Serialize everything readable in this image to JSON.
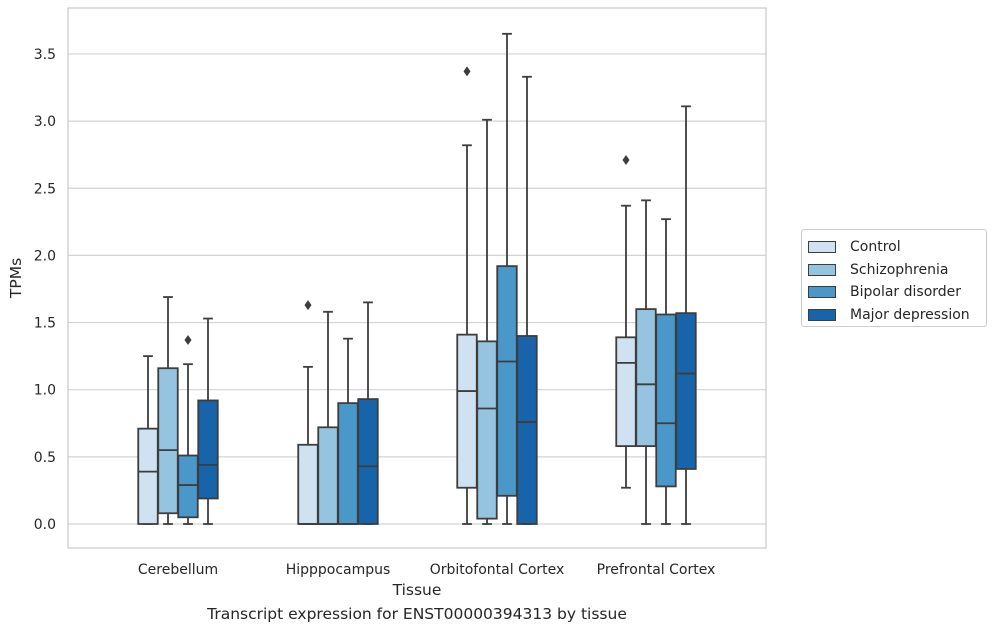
{
  "chart_data": {
    "type": "box",
    "caption": "Transcript expression for ENST00000394313 by tissue",
    "xlabel": "Tissue",
    "ylabel": "TPMs",
    "ylim": [
      -0.18,
      3.85
    ],
    "yticks": [
      "0.0",
      "0.5",
      "1.0",
      "1.5",
      "2.0",
      "2.5",
      "3.0",
      "3.5"
    ],
    "grid": "horizontal",
    "legend_position": "right",
    "categories": [
      "Cerebellum",
      "Hipppocampus",
      "Orbitofontal Cortex",
      "Prefrontal Cortex"
    ],
    "series": [
      {
        "name": "Control",
        "color": "#d0e1f2",
        "boxes": [
          {
            "whislo": 0.0,
            "q1": 0.0,
            "med": 0.39,
            "q3": 0.71,
            "whishi": 1.25,
            "fliers": []
          },
          {
            "whislo": 0.0,
            "q1": 0.0,
            "med": 0.0,
            "q3": 0.59,
            "whishi": 1.17,
            "fliers": [
              1.63
            ]
          },
          {
            "whislo": 0.0,
            "q1": 0.27,
            "med": 0.99,
            "q3": 1.41,
            "whishi": 2.82,
            "fliers": [
              3.37
            ]
          },
          {
            "whislo": 0.27,
            "q1": 0.58,
            "med": 1.2,
            "q3": 1.39,
            "whishi": 2.37,
            "fliers": [
              2.71
            ]
          }
        ]
      },
      {
        "name": "Schizophrenia",
        "color": "#94c4df",
        "boxes": [
          {
            "whislo": 0.0,
            "q1": 0.08,
            "med": 0.55,
            "q3": 1.16,
            "whishi": 1.69,
            "fliers": []
          },
          {
            "whislo": 0.0,
            "q1": 0.0,
            "med": 0.0,
            "q3": 0.72,
            "whishi": 1.58,
            "fliers": []
          },
          {
            "whislo": 0.0,
            "q1": 0.04,
            "med": 0.86,
            "q3": 1.36,
            "whishi": 3.01,
            "fliers": []
          },
          {
            "whislo": 0.0,
            "q1": 0.58,
            "med": 1.04,
            "q3": 1.6,
            "whishi": 2.41,
            "fliers": []
          }
        ]
      },
      {
        "name": "Bipolar disorder",
        "color": "#4a98c9",
        "boxes": [
          {
            "whislo": 0.0,
            "q1": 0.05,
            "med": 0.29,
            "q3": 0.51,
            "whishi": 1.19,
            "fliers": [
              1.37
            ]
          },
          {
            "whislo": 0.0,
            "q1": 0.0,
            "med": 0.0,
            "q3": 0.9,
            "whishi": 1.38,
            "fliers": []
          },
          {
            "whislo": 0.0,
            "q1": 0.21,
            "med": 1.21,
            "q3": 1.92,
            "whishi": 3.65,
            "fliers": []
          },
          {
            "whislo": 0.0,
            "q1": 0.28,
            "med": 0.75,
            "q3": 1.56,
            "whishi": 2.27,
            "fliers": []
          }
        ]
      },
      {
        "name": "Major depression",
        "color": "#1764ab",
        "boxes": [
          {
            "whislo": 0.0,
            "q1": 0.19,
            "med": 0.44,
            "q3": 0.92,
            "whishi": 1.53,
            "fliers": []
          },
          {
            "whislo": 0.0,
            "q1": 0.0,
            "med": 0.43,
            "q3": 0.93,
            "whishi": 1.65,
            "fliers": []
          },
          {
            "whislo": 0.0,
            "q1": 0.0,
            "med": 0.76,
            "q3": 1.4,
            "whishi": 3.33,
            "fliers": []
          },
          {
            "whislo": 0.0,
            "q1": 0.41,
            "med": 1.12,
            "q3": 1.57,
            "whishi": 3.11,
            "fliers": []
          }
        ]
      }
    ]
  }
}
